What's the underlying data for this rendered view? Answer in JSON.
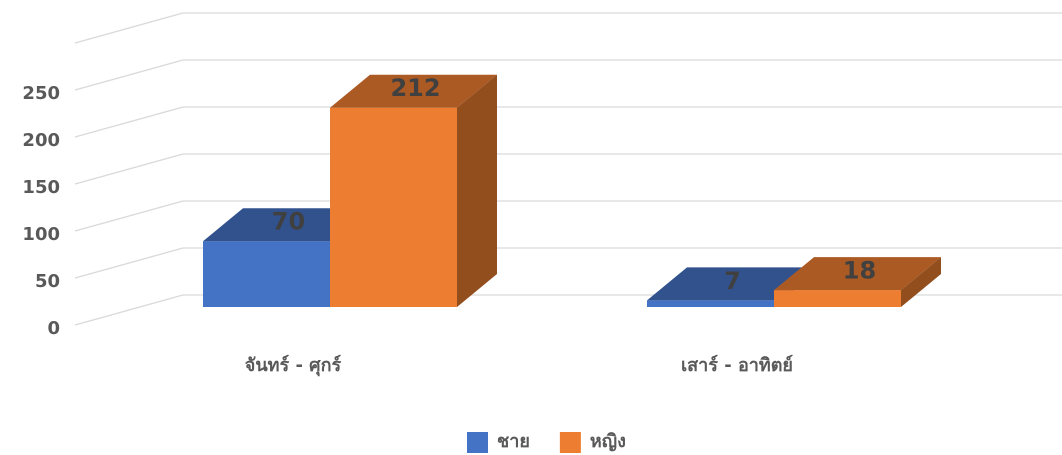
{
  "chart_data": {
    "type": "bar3d",
    "categories": [
      "จันทร์ - ศุกร์",
      "เสาร์ - อาทิตย์"
    ],
    "series": [
      {
        "name": "ชาย",
        "color": "#4472c4",
        "values": [
          70,
          7
        ]
      },
      {
        "name": "หญิง",
        "color": "#ed7d31",
        "values": [
          212,
          18
        ]
      }
    ],
    "ylim": [
      0,
      300
    ],
    "yticks": [
      0,
      50,
      100,
      150,
      200,
      250
    ],
    "grid": true,
    "legend": "bottom"
  }
}
